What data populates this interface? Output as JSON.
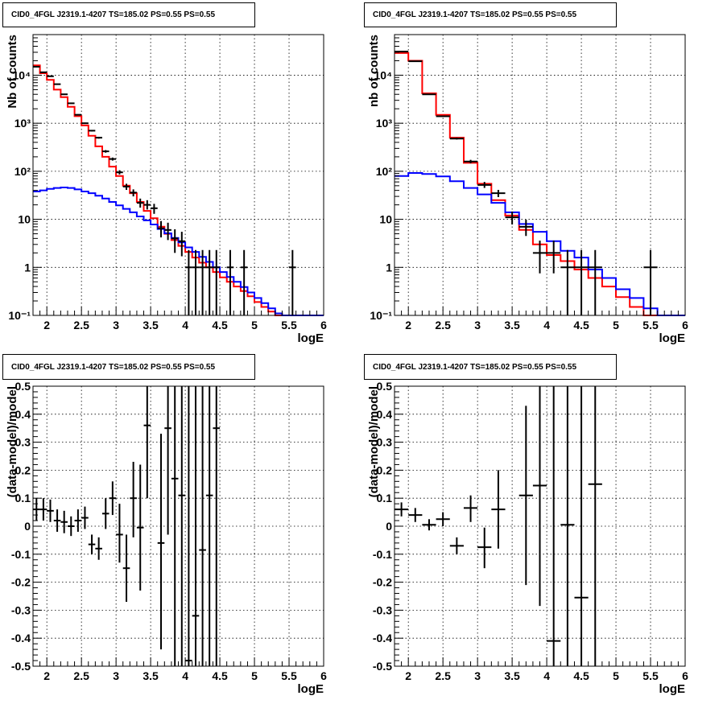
{
  "chart_data": [
    {
      "type": "histogram",
      "title": "CID0_4FGL J2319.1-4207 TS=185.02 PS=0.55 PS=0.55",
      "xlabel": "logE",
      "ylabel": "Nb of counts",
      "xlim": [
        1.8,
        6
      ],
      "ylim": [
        0.1,
        70000
      ],
      "yscale": "log",
      "grid": true,
      "x_ticks": [
        2,
        2.5,
        3,
        3.5,
        4,
        4.5,
        5,
        5.5,
        6
      ],
      "y_ticks": [
        {
          "v": 0.1,
          "l": "10⁻¹"
        },
        {
          "v": 1,
          "l": "1"
        },
        {
          "v": 10,
          "l": "10"
        },
        {
          "v": 100,
          "l": "10²"
        },
        {
          "v": 1000,
          "l": "10³"
        },
        {
          "v": 10000,
          "l": "10⁴"
        }
      ],
      "bin_edges": [
        1.8,
        1.9,
        2.0,
        2.1,
        2.2,
        2.3,
        2.4,
        2.5,
        2.6,
        2.7,
        2.8,
        2.9,
        3.0,
        3.1,
        3.2,
        3.3,
        3.4,
        3.5,
        3.6,
        3.7,
        3.8,
        3.9,
        4.0,
        4.1,
        4.2,
        4.3,
        4.4,
        4.5,
        4.6,
        4.7,
        4.8,
        4.9,
        5.0,
        5.1,
        5.2,
        5.3,
        5.4,
        5.5,
        5.6,
        5.7,
        5.8,
        5.9,
        6.0
      ],
      "series": [
        {
          "name": "",
          "role": "model_total",
          "color": "#ff0000",
          "values": [
            16000,
            11000,
            8000,
            5000,
            3500,
            2200,
            1400,
            900,
            550,
            330,
            200,
            125,
            80,
            50,
            35,
            23,
            15,
            10.5,
            7,
            5,
            3.7,
            2.8,
            2.1,
            1.6,
            1.25,
            1.0,
            0.8,
            0.62,
            0.5,
            0.4,
            0.32,
            0.25,
            0.19,
            0.15,
            0.12,
            0.1,
            0.1,
            0.1,
            0.1,
            0.1,
            0.1,
            0.1
          ]
        },
        {
          "name": "",
          "role": "background_model",
          "color": "#0000ff",
          "values": [
            38,
            40,
            43,
            45,
            46,
            45,
            42,
            38,
            35,
            31,
            27,
            23,
            19.5,
            16.5,
            14,
            11.5,
            9.5,
            7.8,
            6.3,
            5.1,
            4.1,
            3.3,
            2.6,
            2.1,
            1.65,
            1.3,
            1.0,
            0.8,
            0.63,
            0.5,
            0.39,
            0.3,
            0.23,
            0.18,
            0.14,
            0.11,
            0.1,
            0.1,
            0.1,
            0.1,
            0.1,
            0.1
          ]
        }
      ],
      "points": [
        {
          "x": 1.85,
          "y": 15000,
          "ylo": 14800,
          "yhi": 15200,
          "xerr": 0.05
        },
        {
          "x": 1.95,
          "y": 11500,
          "ylo": 11350,
          "yhi": 11650,
          "xerr": 0.05
        },
        {
          "x": 2.05,
          "y": 9500,
          "ylo": 9350,
          "yhi": 9650,
          "xerr": 0.05
        },
        {
          "x": 2.15,
          "y": 6500,
          "ylo": 6400,
          "yhi": 6600,
          "xerr": 0.05
        },
        {
          "x": 2.25,
          "y": 4000,
          "ylo": 3930,
          "yhi": 4070,
          "xerr": 0.05
        },
        {
          "x": 2.35,
          "y": 2600,
          "ylo": 2550,
          "yhi": 2650,
          "xerr": 0.05
        },
        {
          "x": 2.45,
          "y": 1500,
          "ylo": 1460,
          "yhi": 1540,
          "xerr": 0.05
        },
        {
          "x": 2.55,
          "y": 1000,
          "ylo": 970,
          "yhi": 1030,
          "xerr": 0.05
        },
        {
          "x": 2.65,
          "y": 700,
          "ylo": 675,
          "yhi": 725,
          "xerr": 0.05
        },
        {
          "x": 2.75,
          "y": 500,
          "ylo": 478,
          "yhi": 522,
          "xerr": 0.05
        },
        {
          "x": 2.85,
          "y": 260,
          "ylo": 244,
          "yhi": 276,
          "xerr": 0.05
        },
        {
          "x": 2.95,
          "y": 180,
          "ylo": 167,
          "yhi": 193,
          "xerr": 0.05
        },
        {
          "x": 3.05,
          "y": 95,
          "ylo": 86,
          "yhi": 105,
          "xerr": 0.05
        },
        {
          "x": 3.15,
          "y": 48,
          "ylo": 41,
          "yhi": 55,
          "xerr": 0.05
        },
        {
          "x": 3.25,
          "y": 36,
          "ylo": 30,
          "yhi": 42,
          "xerr": 0.05
        },
        {
          "x": 3.35,
          "y": 22,
          "ylo": 17.5,
          "yhi": 27,
          "xerr": 0.05
        },
        {
          "x": 3.45,
          "y": 20,
          "ylo": 16,
          "yhi": 25,
          "xerr": 0.05
        },
        {
          "x": 3.55,
          "y": 17,
          "ylo": 13,
          "yhi": 21,
          "xerr": 0.05
        },
        {
          "x": 3.65,
          "y": 6.5,
          "ylo": 4.2,
          "yhi": 9.2,
          "xerr": 0.05
        },
        {
          "x": 3.75,
          "y": 6,
          "ylo": 3.7,
          "yhi": 8.5,
          "xerr": 0.05
        },
        {
          "x": 3.85,
          "y": 4,
          "ylo": 2.0,
          "yhi": 6.2,
          "xerr": 0.05
        },
        {
          "x": 3.95,
          "y": 3.5,
          "ylo": 1.7,
          "yhi": 5.5,
          "xerr": 0.05
        },
        {
          "x": 4.05,
          "y": 1,
          "ylo": 0.1,
          "yhi": 2.3,
          "xerr": 0.05
        },
        {
          "x": 4.15,
          "y": 1,
          "ylo": 0.1,
          "yhi": 2.3,
          "xerr": 0.05
        },
        {
          "x": 4.25,
          "y": 1,
          "ylo": 0.1,
          "yhi": 2.3,
          "xerr": 0.05
        },
        {
          "x": 4.35,
          "y": 1,
          "ylo": 0.1,
          "yhi": 2.3,
          "xerr": 0.05
        },
        {
          "x": 4.45,
          "y": 1,
          "ylo": 0.1,
          "yhi": 2.3,
          "xerr": 0.05
        },
        {
          "x": 4.65,
          "y": 1,
          "ylo": 0.1,
          "yhi": 2.3,
          "xerr": 0.05
        },
        {
          "x": 4.85,
          "y": 1,
          "ylo": 0.1,
          "yhi": 2.3,
          "xerr": 0.05
        },
        {
          "x": 5.55,
          "y": 1,
          "ylo": 0.1,
          "yhi": 2.3,
          "xerr": 0.05
        }
      ]
    },
    {
      "type": "histogram",
      "title": "CID0_4FGL J2319.1-4207 TS=185.02 PS=0.55 PS=0.55",
      "xlabel": "logE",
      "ylabel": "nb of counts",
      "xlim": [
        1.8,
        6
      ],
      "ylim": [
        0.1,
        70000
      ],
      "yscale": "log",
      "grid": true,
      "x_ticks": [
        2,
        2.5,
        3,
        3.5,
        4,
        4.5,
        5,
        5.5,
        6
      ],
      "y_ticks": [
        {
          "v": 0.1,
          "l": "10⁻¹"
        },
        {
          "v": 1,
          "l": "1"
        },
        {
          "v": 10,
          "l": "10"
        },
        {
          "v": 100,
          "l": "10²"
        },
        {
          "v": 1000,
          "l": "10³"
        },
        {
          "v": 10000,
          "l": "10⁴"
        }
      ],
      "bin_edges": [
        1.8,
        2.0,
        2.2,
        2.4,
        2.6,
        2.8,
        3.0,
        3.2,
        3.4,
        3.6,
        3.8,
        4.0,
        4.2,
        4.4,
        4.6,
        4.8,
        5.0,
        5.2,
        5.4,
        5.6,
        5.8,
        6.0
      ],
      "series": [
        {
          "name": "",
          "role": "model_total",
          "color": "#ff0000",
          "values": [
            29000,
            20000,
            4200,
            1500,
            500,
            150,
            55,
            25,
            12,
            6,
            3,
            1.8,
            1.35,
            0.9,
            0.6,
            0.4,
            0.24,
            0.15,
            0.1,
            0.1,
            0.1
          ]
        },
        {
          "name": "",
          "role": "background_model",
          "color": "#0000ff",
          "values": [
            80,
            92,
            88,
            78,
            62,
            45,
            33,
            22,
            14,
            8,
            5.5,
            3.5,
            2.2,
            1.6,
            0.9,
            0.6,
            0.35,
            0.23,
            0.14,
            0.1,
            0.1
          ]
        }
      ],
      "points": [
        {
          "x": 1.9,
          "y": 31000,
          "ylo": 30800,
          "yhi": 31200,
          "xerr": 0.1
        },
        {
          "x": 2.1,
          "y": 19500,
          "ylo": 19350,
          "yhi": 19650,
          "xerr": 0.1
        },
        {
          "x": 2.3,
          "y": 4000,
          "ylo": 3930,
          "yhi": 4070,
          "xerr": 0.1
        },
        {
          "x": 2.5,
          "y": 1400,
          "ylo": 1360,
          "yhi": 1440,
          "xerr": 0.1
        },
        {
          "x": 2.7,
          "y": 480,
          "ylo": 458,
          "yhi": 502,
          "xerr": 0.1
        },
        {
          "x": 2.9,
          "y": 160,
          "ylo": 147,
          "yhi": 173,
          "xerr": 0.1
        },
        {
          "x": 3.1,
          "y": 52,
          "ylo": 45,
          "yhi": 60,
          "xerr": 0.1
        },
        {
          "x": 3.3,
          "y": 35,
          "ylo": 29,
          "yhi": 41,
          "xerr": 0.1
        },
        {
          "x": 3.5,
          "y": 11,
          "ylo": 7.8,
          "yhi": 14.5,
          "xerr": 0.1
        },
        {
          "x": 3.7,
          "y": 7,
          "ylo": 4.5,
          "yhi": 9.8,
          "xerr": 0.1
        },
        {
          "x": 3.9,
          "y": 2,
          "ylo": 0.75,
          "yhi": 3.6,
          "xerr": 0.1
        },
        {
          "x": 4.1,
          "y": 2,
          "ylo": 0.75,
          "yhi": 3.6,
          "xerr": 0.1
        },
        {
          "x": 4.3,
          "y": 1,
          "ylo": 0.1,
          "yhi": 2.3,
          "xerr": 0.1
        },
        {
          "x": 4.5,
          "y": 1,
          "ylo": 0.1,
          "yhi": 2.3,
          "xerr": 0.1
        },
        {
          "x": 4.7,
          "y": 1,
          "ylo": 0.1,
          "yhi": 2.3,
          "xerr": 0.1
        },
        {
          "x": 5.5,
          "y": 1,
          "ylo": 0.1,
          "yhi": 2.3,
          "xerr": 0.1
        }
      ]
    },
    {
      "type": "scatter",
      "title": "CID0_4FGL J2319.1-4207 TS=185.02 PS=0.55 PS=0.55",
      "xlabel": "logE",
      "ylabel": "(data-model)/model",
      "xlim": [
        1.8,
        6
      ],
      "ylim": [
        -0.5,
        0.5
      ],
      "yscale": "linear",
      "grid": true,
      "x_ticks": [
        2,
        2.5,
        3,
        3.5,
        4,
        4.5,
        5,
        5.5,
        6
      ],
      "y_ticks": [
        {
          "v": -0.5,
          "l": "-0.5"
        },
        {
          "v": -0.4,
          "l": "-0.4"
        },
        {
          "v": -0.3,
          "l": "-0.3"
        },
        {
          "v": -0.2,
          "l": "-0.2"
        },
        {
          "v": -0.1,
          "l": "-0.1"
        },
        {
          "v": 0,
          "l": "0"
        },
        {
          "v": 0.1,
          "l": "0.1"
        },
        {
          "v": 0.2,
          "l": "0.2"
        },
        {
          "v": 0.3,
          "l": "0.3"
        },
        {
          "v": 0.4,
          "l": "0.4"
        },
        {
          "v": 0.5,
          "l": "0.5"
        }
      ],
      "points": [
        {
          "x": 1.85,
          "y": 0.06,
          "ylo": 0.02,
          "yhi": 0.1,
          "xerr": 0.05
        },
        {
          "x": 1.95,
          "y": 0.06,
          "ylo": 0.02,
          "yhi": 0.1,
          "xerr": 0.05
        },
        {
          "x": 2.05,
          "y": 0.055,
          "ylo": 0.015,
          "yhi": 0.095,
          "xerr": 0.05
        },
        {
          "x": 2.15,
          "y": 0.02,
          "ylo": -0.02,
          "yhi": 0.06,
          "xerr": 0.05
        },
        {
          "x": 2.25,
          "y": 0.015,
          "ylo": -0.025,
          "yhi": 0.055,
          "xerr": 0.05
        },
        {
          "x": 2.35,
          "y": 0.0,
          "ylo": -0.035,
          "yhi": 0.035,
          "xerr": 0.05
        },
        {
          "x": 2.45,
          "y": 0.02,
          "ylo": -0.02,
          "yhi": 0.06,
          "xerr": 0.05
        },
        {
          "x": 2.55,
          "y": 0.03,
          "ylo": -0.01,
          "yhi": 0.07,
          "xerr": 0.05
        },
        {
          "x": 2.65,
          "y": -0.065,
          "ylo": -0.1,
          "yhi": -0.03,
          "xerr": 0.05
        },
        {
          "x": 2.75,
          "y": -0.08,
          "ylo": -0.12,
          "yhi": -0.04,
          "xerr": 0.05
        },
        {
          "x": 2.85,
          "y": 0.045,
          "ylo": -0.01,
          "yhi": 0.1,
          "xerr": 0.05
        },
        {
          "x": 2.95,
          "y": 0.1,
          "ylo": 0.04,
          "yhi": 0.16,
          "xerr": 0.05
        },
        {
          "x": 3.05,
          "y": -0.03,
          "ylo": -0.13,
          "yhi": 0.08,
          "xerr": 0.05
        },
        {
          "x": 3.15,
          "y": -0.15,
          "ylo": -0.27,
          "yhi": -0.03,
          "xerr": 0.05
        },
        {
          "x": 3.25,
          "y": 0.1,
          "ylo": -0.04,
          "yhi": 0.23,
          "xerr": 0.05
        },
        {
          "x": 3.35,
          "y": -0.005,
          "ylo": -0.23,
          "yhi": 0.22,
          "xerr": 0.05
        },
        {
          "x": 3.45,
          "y": 0.36,
          "ylo": 0.1,
          "yhi": 0.5,
          "xerr": 0.05
        },
        {
          "x": 3.65,
          "y": -0.06,
          "ylo": -0.44,
          "yhi": 0.33,
          "xerr": 0.05
        },
        {
          "x": 3.75,
          "y": 0.35,
          "ylo": -0.03,
          "yhi": 0.5,
          "xerr": 0.05
        },
        {
          "x": 3.85,
          "y": 0.17,
          "ylo": -0.5,
          "yhi": 0.5,
          "xerr": 0.05
        },
        {
          "x": 3.95,
          "y": 0.11,
          "ylo": -0.5,
          "yhi": 0.5,
          "xerr": 0.05
        },
        {
          "x": 4.05,
          "y": -0.48,
          "ylo": -0.5,
          "yhi": 0.5,
          "xerr": 0.05
        },
        {
          "x": 4.15,
          "y": -0.32,
          "ylo": -0.5,
          "yhi": 0.5,
          "xerr": 0.05
        },
        {
          "x": 4.25,
          "y": -0.085,
          "ylo": -0.5,
          "yhi": 0.5,
          "xerr": 0.05
        },
        {
          "x": 4.35,
          "y": 0.11,
          "ylo": -0.5,
          "yhi": 0.5,
          "xerr": 0.05
        },
        {
          "x": 4.45,
          "y": 0.35,
          "ylo": -0.5,
          "yhi": 0.5,
          "xerr": 0.05
        }
      ]
    },
    {
      "type": "scatter",
      "title": "CID0_4FGL J2319.1-4207 TS=185.02 PS=0.55 PS=0.55",
      "xlabel": "logE",
      "ylabel": "(data-model)/model",
      "xlim": [
        1.8,
        6
      ],
      "ylim": [
        -0.5,
        0.5
      ],
      "yscale": "linear",
      "grid": true,
      "x_ticks": [
        2,
        2.5,
        3,
        3.5,
        4,
        4.5,
        5,
        5.5,
        6
      ],
      "y_ticks": [
        {
          "v": -0.5,
          "l": "-0.5"
        },
        {
          "v": -0.4,
          "l": "-0.4"
        },
        {
          "v": -0.3,
          "l": "-0.3"
        },
        {
          "v": -0.2,
          "l": "-0.2"
        },
        {
          "v": -0.1,
          "l": "-0.1"
        },
        {
          "v": 0,
          "l": "0"
        },
        {
          "v": 0.1,
          "l": "0.1"
        },
        {
          "v": 0.2,
          "l": "0.2"
        },
        {
          "v": 0.3,
          "l": "0.3"
        },
        {
          "v": 0.4,
          "l": "0.4"
        },
        {
          "v": 0.5,
          "l": "0.5"
        }
      ],
      "points": [
        {
          "x": 1.9,
          "y": 0.06,
          "ylo": 0.035,
          "yhi": 0.085,
          "xerr": 0.1
        },
        {
          "x": 2.1,
          "y": 0.04,
          "ylo": 0.015,
          "yhi": 0.065,
          "xerr": 0.1
        },
        {
          "x": 2.3,
          "y": 0.005,
          "ylo": -0.015,
          "yhi": 0.025,
          "xerr": 0.1
        },
        {
          "x": 2.5,
          "y": 0.025,
          "ylo": 0.0,
          "yhi": 0.05,
          "xerr": 0.1
        },
        {
          "x": 2.7,
          "y": -0.07,
          "ylo": -0.1,
          "yhi": -0.04,
          "xerr": 0.1
        },
        {
          "x": 2.9,
          "y": 0.065,
          "ylo": 0.015,
          "yhi": 0.11,
          "xerr": 0.1
        },
        {
          "x": 3.1,
          "y": -0.075,
          "ylo": -0.15,
          "yhi": -0.005,
          "xerr": 0.1
        },
        {
          "x": 3.3,
          "y": 0.06,
          "ylo": -0.08,
          "yhi": 0.2,
          "xerr": 0.1
        },
        {
          "x": 3.7,
          "y": 0.11,
          "ylo": -0.21,
          "yhi": 0.43,
          "xerr": 0.1
        },
        {
          "x": 3.9,
          "y": 0.145,
          "ylo": -0.285,
          "yhi": 0.5,
          "xerr": 0.1
        },
        {
          "x": 4.1,
          "y": -0.41,
          "ylo": -0.5,
          "yhi": 0.5,
          "xerr": 0.1
        },
        {
          "x": 4.3,
          "y": 0.005,
          "ylo": -0.5,
          "yhi": 0.5,
          "xerr": 0.1
        },
        {
          "x": 4.5,
          "y": -0.255,
          "ylo": -0.5,
          "yhi": 0.5,
          "xerr": 0.1
        },
        {
          "x": 4.7,
          "y": 0.15,
          "ylo": -0.5,
          "yhi": 0.5,
          "xerr": 0.1
        }
      ]
    }
  ]
}
